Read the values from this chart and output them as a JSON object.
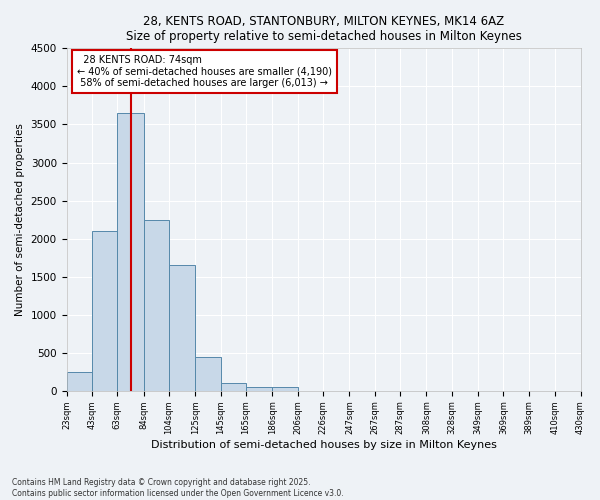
{
  "title_line1": "28, KENTS ROAD, STANTONBURY, MILTON KEYNES, MK14 6AZ",
  "title_line2": "Size of property relative to semi-detached houses in Milton Keynes",
  "xlabel": "Distribution of semi-detached houses by size in Milton Keynes",
  "ylabel": "Number of semi-detached properties",
  "footer_line1": "Contains HM Land Registry data © Crown copyright and database right 2025.",
  "footer_line2": "Contains public sector information licensed under the Open Government Licence v3.0.",
  "property_label": "28 KENTS ROAD: 74sqm",
  "pct_smaller": 40,
  "pct_larger": 58,
  "count_smaller": 4190,
  "count_larger": 6013,
  "bin_edges": [
    23,
    43,
    63,
    84,
    104,
    125,
    145,
    165,
    186,
    206,
    226,
    247,
    267,
    287,
    308,
    328,
    349,
    369,
    389,
    410,
    430
  ],
  "bar_heights": [
    250,
    2100,
    3650,
    2250,
    1650,
    450,
    100,
    50,
    50,
    0,
    0,
    0,
    0,
    0,
    0,
    0,
    0,
    0,
    0,
    0
  ],
  "bar_color": "#c8d8e8",
  "bar_edge_color": "#5588aa",
  "vline_color": "#cc0000",
  "vline_x": 74,
  "annotation_box_color": "#cc0000",
  "background_color": "#eef2f6",
  "grid_color": "#ffffff",
  "ylim": [
    0,
    4500
  ],
  "yticks": [
    0,
    500,
    1000,
    1500,
    2000,
    2500,
    3000,
    3500,
    4000,
    4500
  ]
}
